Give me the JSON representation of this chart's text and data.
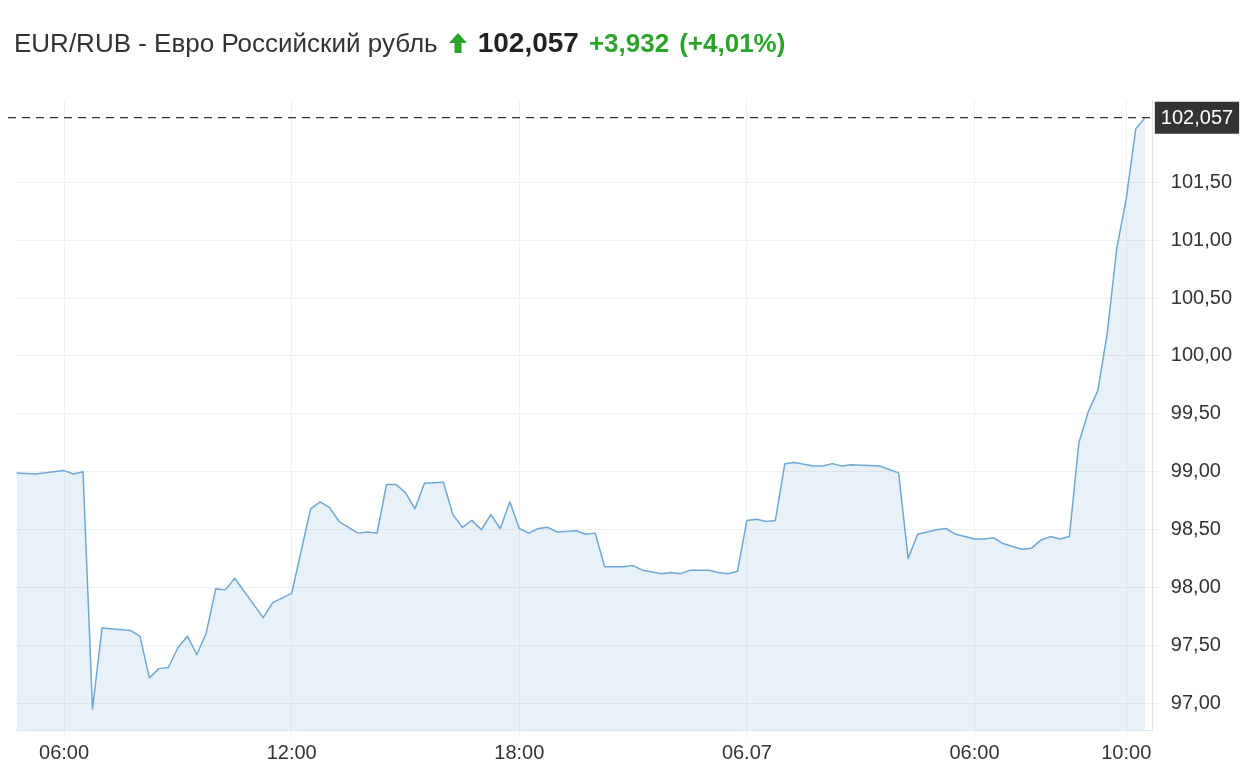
{
  "chart_data": {
    "type": "area",
    "title": "EUR/RUB - Евро Российский рубль",
    "annotations": [
      "102,057",
      "+3,932",
      "(+4,01%)"
    ],
    "x": [
      "--07-05T04:45",
      "--07-05T05:15",
      "--07-05T06:00",
      "--07-05T06:15",
      "--07-05T06:30",
      "--07-05T06:45",
      "--07-05T07:00",
      "--07-05T07:45",
      "--07-05T08:00",
      "--07-05T08:15",
      "--07-05T08:30",
      "--07-05T08:45",
      "--07-05T09:00",
      "--07-05T09:15",
      "--07-05T09:30",
      "--07-05T09:45",
      "--07-05T10:00",
      "--07-05T10:15",
      "--07-05T10:30",
      "--07-05T11:15",
      "--07-05T11:30",
      "--07-05T12:00",
      "--07-05T12:30",
      "--07-05T12:45",
      "--07-05T13:00",
      "--07-05T13:15",
      "--07-05T13:45",
      "--07-05T14:00",
      "--07-05T14:15",
      "--07-05T14:30",
      "--07-05T14:45",
      "--07-05T15:00",
      "--07-05T15:15",
      "--07-05T15:30",
      "--07-05T16:00",
      "--07-05T16:15",
      "--07-05T16:30",
      "--07-05T16:45",
      "--07-05T17:00",
      "--07-05T17:15",
      "--07-05T17:30",
      "--07-05T17:45",
      "--07-05T18:00",
      "--07-05T18:15",
      "--07-05T18:30",
      "--07-05T18:45",
      "--07-05T19:00",
      "--07-05T19:30",
      "--07-05T19:45",
      "--07-05T20:00",
      "--07-05T20:15",
      "--07-05T20:45",
      "--07-05T21:00",
      "--07-05T21:15",
      "--07-05T21:45",
      "--07-05T22:00",
      "--07-05T22:15",
      "--07-05T22:30",
      "--07-05T23:00",
      "--07-05T23:15",
      "--07-05T23:30",
      "--07-05T23:45",
      "--07-06T00:00",
      "--07-06T00:15",
      "--07-06T00:30",
      "--07-06T00:45",
      "--07-06T01:00",
      "--07-06T01:15",
      "--07-06T01:45",
      "--07-06T02:00",
      "--07-06T02:15",
      "--07-06T02:30",
      "--07-06T02:45",
      "--07-06T03:30",
      "--07-06T03:45",
      "--07-06T04:00",
      "--07-06T04:15",
      "--07-06T04:30",
      "--07-06T05:00",
      "--07-06T05:15",
      "--07-06T05:30",
      "--07-06T05:45",
      "--07-06T06:00",
      "--07-06T06:15",
      "--07-06T06:30",
      "--07-06T06:45",
      "--07-06T07:15",
      "--07-06T07:30",
      "--07-06T07:45",
      "--07-06T08:00",
      "--07-06T08:15",
      "--07-06T08:30",
      "--07-06T08:45",
      "--07-06T09:00",
      "--07-06T09:15",
      "--07-06T09:30",
      "--07-06T09:45",
      "--07-06T10:00",
      "--07-06T10:15",
      "--07-06T10:30"
    ],
    "series": [
      {
        "color": "#6fa8d6",
        "values": [
          98.99,
          98.98,
          99.01,
          98.98,
          99.0,
          96.95,
          97.65,
          97.63,
          97.58,
          97.22,
          97.3,
          97.31,
          97.48,
          97.58,
          97.42,
          97.61,
          97.99,
          97.98,
          98.08,
          97.74,
          97.87,
          97.95,
          98.68,
          98.74,
          98.69,
          98.57,
          98.47,
          98.48,
          98.47,
          98.89,
          98.89,
          98.82,
          98.68,
          98.9,
          98.91,
          98.63,
          98.52,
          98.58,
          98.5,
          98.63,
          98.51,
          98.74,
          98.51,
          98.47,
          98.51,
          98.52,
          98.48,
          98.49,
          98.46,
          98.47,
          98.18,
          98.18,
          98.19,
          98.15,
          98.12,
          98.13,
          98.12,
          98.15,
          98.15,
          98.13,
          98.12,
          98.14,
          98.58,
          98.59,
          98.57,
          98.58,
          99.07,
          99.08,
          99.05,
          99.05,
          99.07,
          99.05,
          99.06,
          99.05,
          99.02,
          98.99,
          98.25,
          98.46,
          98.5,
          98.51,
          98.46,
          98.44,
          98.42,
          98.42,
          98.43,
          98.38,
          98.33,
          98.34,
          98.41,
          98.44,
          98.42,
          98.44,
          99.25,
          99.52,
          99.7,
          100.2,
          100.93,
          101.36,
          101.96,
          102.06
        ]
      }
    ],
    "xlim": [
      "--07-05T04:44",
      "--07-06T10:42"
    ],
    "xticks": [
      {
        "value": "--07-05T06:00",
        "label": "06:00"
      },
      {
        "value": "--07-05T12:00",
        "label": "12:00"
      },
      {
        "value": "--07-05T18:00",
        "label": "18:00"
      },
      {
        "value": "--07-06T00:00",
        "label": "06.07"
      },
      {
        "value": "--07-06T06:00",
        "label": "06:00"
      },
      {
        "value": "--07-06T10:00",
        "label": "10:00"
      }
    ],
    "ylim": [
      96.77,
      102.21
    ],
    "yticks": [
      {
        "value": 97,
        "label": "97,00"
      },
      {
        "value": 97.5,
        "label": "97,50"
      },
      {
        "value": 98,
        "label": "98,00"
      },
      {
        "value": 98.5,
        "label": "98,50"
      },
      {
        "value": 99,
        "label": "99,00"
      },
      {
        "value": 99.5,
        "label": "99,50"
      },
      {
        "value": 100,
        "label": "100,00"
      },
      {
        "value": 100.5,
        "label": "100,50"
      },
      {
        "value": 101,
        "label": "101,00"
      },
      {
        "value": 101.5,
        "label": "101,50"
      }
    ],
    "ref_lines": [
      {
        "axis": "y",
        "value": 102.057,
        "label": "102,057",
        "color": "#333333",
        "line_style": "dashed"
      }
    ],
    "grid": true,
    "legend": false,
    "marker": "none",
    "line_style": "solid"
  }
}
